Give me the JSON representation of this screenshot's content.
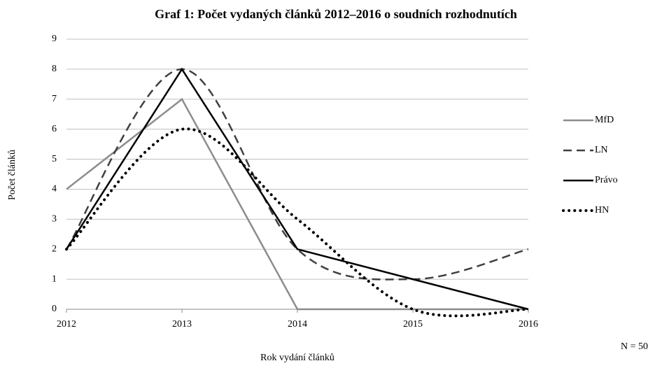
{
  "chart_data": {
    "type": "line",
    "title": "Graf 1: Počet vydaných článků 2012–2016 o soudních rozhodnutích",
    "xlabel": "Rok vydání článků",
    "ylabel": "Počet článků",
    "annotation": "N = 50",
    "x": [
      2012,
      2013,
      2014,
      2015,
      2016
    ],
    "xlim": [
      2012,
      2016
    ],
    "xticks": [
      2012,
      2013,
      2014,
      2015,
      2016
    ],
    "ylim": [
      0,
      9
    ],
    "yticks": [
      0,
      1,
      2,
      3,
      4,
      5,
      6,
      7,
      8,
      9
    ],
    "grid": true,
    "legend": "right",
    "series": [
      {
        "name": "MfD",
        "color": "#8c8c8c",
        "dash": "solid",
        "smooth": false,
        "values": [
          4,
          7,
          0,
          0,
          0
        ]
      },
      {
        "name": "LN",
        "color": "#404040",
        "dash": "dashed",
        "smooth": true,
        "values": [
          2,
          8,
          2,
          1,
          2
        ]
      },
      {
        "name": "Právo",
        "color": "#000000",
        "dash": "solid",
        "smooth": false,
        "values": [
          2,
          8,
          2,
          1,
          0
        ]
      },
      {
        "name": "HN",
        "color": "#000000",
        "dash": "dotted",
        "smooth": true,
        "values": [
          2,
          6,
          3,
          0,
          0
        ]
      }
    ]
  }
}
